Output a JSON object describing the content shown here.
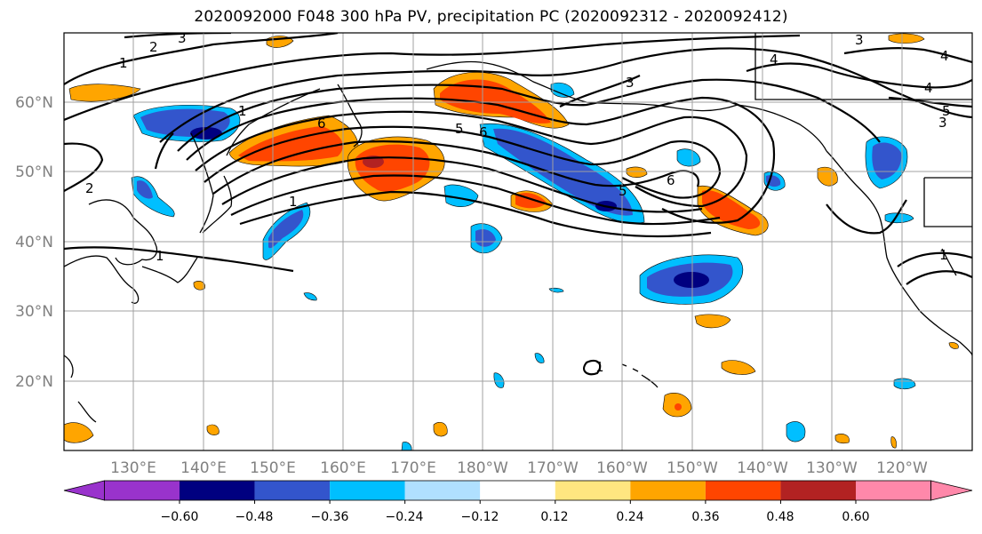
{
  "title": "2020092000 F048 300 hPa PV, precipitation PC (2020092312 - 2020092412)",
  "map": {
    "lat_labels": [
      "60°N",
      "50°N",
      "40°N",
      "30°N",
      "20°N"
    ],
    "lon_labels": [
      "130°E",
      "140°E",
      "150°E",
      "160°E",
      "170°E",
      "180°W",
      "170°W",
      "160°W",
      "150°W",
      "140°W",
      "130°W",
      "120°W"
    ],
    "grid": true,
    "pv_contour_labels": [
      "1",
      "2",
      "3",
      "4",
      "5",
      "6"
    ]
  },
  "colorbar": {
    "tick_labels": [
      "−0.60",
      "−0.48",
      "−0.36",
      "−0.24",
      "−0.12",
      "0.12",
      "0.24",
      "0.36",
      "0.48",
      "0.60"
    ],
    "colors": [
      "#9933cc",
      "#000080",
      "#3355cc",
      "#00bfff",
      "#b0e0ff",
      "#ffffff",
      "#ffe680",
      "#ffa500",
      "#ff4500",
      "#b22222",
      "#ff88aa"
    ]
  }
}
